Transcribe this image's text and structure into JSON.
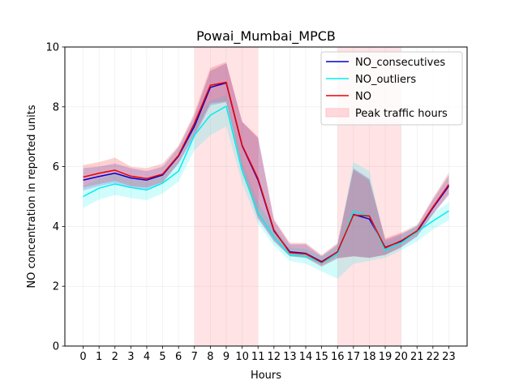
{
  "chart_data": {
    "type": "line",
    "title": "Powai_Mumbai_MPCB",
    "xlabel": "Hours",
    "ylabel": "NO concentration in reported units",
    "x": [
      0,
      1,
      2,
      3,
      4,
      5,
      6,
      7,
      8,
      9,
      10,
      11,
      12,
      13,
      14,
      15,
      16,
      17,
      18,
      19,
      20,
      21,
      22,
      23
    ],
    "xlim": [
      -1.15,
      24.15
    ],
    "ylim": [
      0,
      10
    ],
    "yticks": [
      0,
      2,
      4,
      6,
      8,
      10
    ],
    "grid": true,
    "legend_position": "top-right",
    "peak_hours": [
      [
        7,
        11
      ],
      [
        16,
        20
      ]
    ],
    "peak_label": "Peak traffic hours",
    "peak_color": "#ffc0c6",
    "series": [
      {
        "name": "NO_consecutives",
        "color": "#0000cc",
        "values": [
          5.55,
          5.67,
          5.78,
          5.62,
          5.55,
          5.72,
          6.35,
          7.35,
          8.65,
          8.8,
          6.7,
          5.55,
          3.85,
          3.15,
          3.1,
          2.82,
          3.15,
          4.4,
          4.25,
          3.3,
          3.5,
          3.82,
          4.62,
          5.35
        ],
        "lower": [
          5.2,
          5.35,
          5.45,
          5.3,
          5.25,
          5.45,
          6.1,
          7.0,
          8.05,
          8.15,
          5.9,
          4.25,
          3.5,
          3.0,
          2.95,
          2.68,
          2.95,
          3.0,
          2.95,
          3.05,
          3.3,
          3.65,
          4.4,
          5.05
        ],
        "upper": [
          5.95,
          6.0,
          6.1,
          5.95,
          5.85,
          6.0,
          6.65,
          7.7,
          9.2,
          9.45,
          7.5,
          6.95,
          4.2,
          3.4,
          3.4,
          3.0,
          3.4,
          5.95,
          5.6,
          3.55,
          3.75,
          4.0,
          4.9,
          5.7
        ]
      },
      {
        "name": "NO_outliers",
        "color": "#00eeee",
        "values": [
          5.0,
          5.28,
          5.42,
          5.3,
          5.22,
          5.45,
          5.85,
          7.05,
          7.72,
          8.02,
          5.85,
          4.45,
          3.65,
          3.05,
          3.0,
          2.78,
          3.08,
          4.5,
          4.35,
          3.2,
          3.45,
          3.82,
          4.18,
          4.52
        ],
        "lower": [
          4.62,
          4.9,
          5.05,
          4.95,
          4.88,
          5.1,
          5.5,
          6.55,
          7.05,
          7.35,
          5.45,
          4.1,
          3.35,
          2.85,
          2.75,
          2.5,
          2.25,
          2.75,
          2.85,
          2.95,
          3.2,
          3.5,
          3.9,
          4.2
        ],
        "upper": [
          5.35,
          5.6,
          5.75,
          5.6,
          5.5,
          5.75,
          6.2,
          7.45,
          8.2,
          8.4,
          6.2,
          4.8,
          3.95,
          3.3,
          3.25,
          3.0,
          3.35,
          6.15,
          5.85,
          3.45,
          3.7,
          4.05,
          4.45,
          4.8
        ]
      },
      {
        "name": "NO",
        "color": "#ee0000",
        "values": [
          5.65,
          5.78,
          5.88,
          5.68,
          5.6,
          5.75,
          6.38,
          7.45,
          8.72,
          8.82,
          6.72,
          5.6,
          3.88,
          3.12,
          3.08,
          2.8,
          3.15,
          4.38,
          4.35,
          3.28,
          3.52,
          3.85,
          4.65,
          5.4
        ],
        "lower": [
          5.3,
          5.42,
          5.52,
          5.35,
          5.3,
          5.48,
          6.12,
          7.08,
          8.12,
          8.18,
          5.95,
          4.3,
          3.52,
          3.0,
          2.95,
          2.65,
          2.92,
          3.0,
          2.95,
          3.05,
          3.3,
          3.68,
          4.42,
          5.08
        ],
        "upper": [
          6.05,
          6.15,
          6.3,
          6.0,
          5.95,
          6.1,
          6.7,
          7.8,
          9.3,
          9.5,
          7.5,
          7.0,
          4.25,
          3.45,
          3.45,
          3.05,
          3.45,
          5.9,
          5.55,
          3.6,
          3.8,
          4.05,
          4.95,
          5.8
        ]
      }
    ]
  }
}
